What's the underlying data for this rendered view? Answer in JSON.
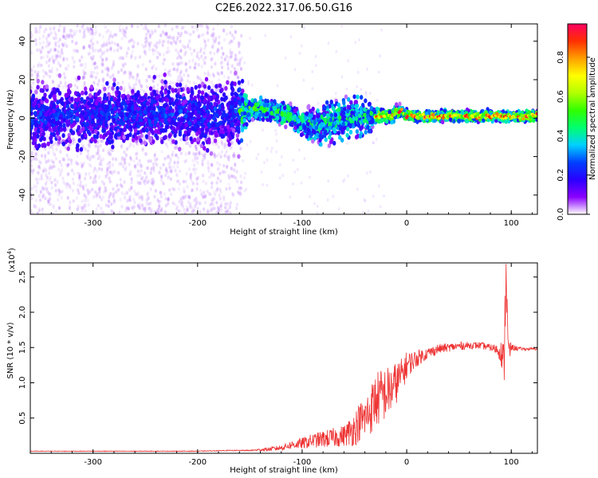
{
  "title": "C2E6.2022.317.06.50.G16",
  "chart_data": [
    {
      "type": "heatmap",
      "xlabel": "Height of straight line (km)",
      "ylabel": "Frequency (Hz)",
      "xlim": [
        -360,
        125
      ],
      "ylim": [
        -50,
        49
      ],
      "xticks": [
        -300,
        -200,
        -100,
        0,
        100
      ],
      "xtick_labels": [
        "-300",
        "-200",
        "-100",
        "0",
        "100"
      ],
      "yticks": [
        -40,
        -20,
        0,
        20,
        40
      ],
      "ytick_labels": [
        "-40",
        "-20",
        "0",
        "20",
        "40"
      ],
      "colorbar": {
        "label": "Normalized spectral amplitude",
        "range": [
          0,
          0.97
        ],
        "ticks": [
          0.0,
          0.2,
          0.4,
          0.6,
          0.8
        ],
        "tick_labels": [
          "0.0",
          "0.2",
          "0.4",
          "0.6",
          "0.8"
        ],
        "colors": [
          "#ffffff",
          "#8a00ff",
          "#2a00ff",
          "#0040ff",
          "#00d0ff",
          "#00ff70",
          "#30ff00",
          "#b0ff00",
          "#ffff00",
          "#ffa000",
          "#ff3000",
          "#ff0060"
        ]
      },
      "center_frequency": [
        {
          "x": -355,
          "y": 1
        },
        {
          "x": -300,
          "y": 1
        },
        {
          "x": -250,
          "y": 2
        },
        {
          "x": -200,
          "y": 2
        },
        {
          "x": -160,
          "y": 3
        },
        {
          "x": -150,
          "y": 5
        },
        {
          "x": -140,
          "y": 5
        },
        {
          "x": -125,
          "y": 3
        },
        {
          "x": -110,
          "y": 1
        },
        {
          "x": -100,
          "y": -2
        },
        {
          "x": -90,
          "y": -4
        },
        {
          "x": -80,
          "y": -3
        },
        {
          "x": -70,
          "y": -1
        },
        {
          "x": -55,
          "y": 1
        },
        {
          "x": -40,
          "y": 1
        },
        {
          "x": -25,
          "y": 1
        },
        {
          "x": -15,
          "y": 1
        },
        {
          "x": -10,
          "y": 3
        },
        {
          "x": -5,
          "y": 4
        },
        {
          "x": 0,
          "y": 1
        },
        {
          "x": 20,
          "y": 1
        },
        {
          "x": 50,
          "y": 1
        },
        {
          "x": 100,
          "y": 1
        },
        {
          "x": 125,
          "y": 1
        }
      ],
      "band_halfwidth": [
        {
          "x": -355,
          "y": 12
        },
        {
          "x": -160,
          "y": 12
        },
        {
          "x": -150,
          "y": 4
        },
        {
          "x": -110,
          "y": 4
        },
        {
          "x": -80,
          "y": 8
        },
        {
          "x": -40,
          "y": 8
        },
        {
          "x": -30,
          "y": 3
        },
        {
          "x": 0,
          "y": 2
        },
        {
          "x": 125,
          "y": 2
        }
      ]
    },
    {
      "type": "line",
      "xlabel": "Height of straight line (km)",
      "ylabel": "SNR (10 * v/v)",
      "y_multiplier": "(x10",
      "y_multiplier_exp": "4",
      "y_multiplier_close": ")",
      "xlim": [
        -360,
        125
      ],
      "ylim": [
        0,
        2.7
      ],
      "xticks": [
        -300,
        -200,
        -100,
        0,
        100
      ],
      "xtick_labels": [
        "-300",
        "-200",
        "-100",
        "0",
        "100"
      ],
      "yticks": [
        0.5,
        1.0,
        1.5,
        2.0,
        2.5
      ],
      "ytick_labels": [
        "0.5",
        "1.0",
        "1.5",
        "2.0",
        "2.5"
      ],
      "color": "#ee3333",
      "series": [
        {
          "x": [
            -360,
            -300,
            -250,
            -200,
            -170,
            -150,
            -130,
            -120,
            -110,
            -100,
            -90,
            -80,
            -70,
            -60,
            -50,
            -45,
            -40,
            -35,
            -30,
            -25,
            -20,
            -15,
            -10,
            -5,
            0,
            5,
            10,
            20,
            30,
            40,
            50,
            60,
            70,
            80,
            85,
            90,
            93,
            95,
            97,
            100,
            110,
            125
          ],
          "y": [
            0.03,
            0.03,
            0.03,
            0.03,
            0.04,
            0.04,
            0.06,
            0.08,
            0.12,
            0.14,
            0.18,
            0.2,
            0.22,
            0.25,
            0.35,
            0.45,
            0.5,
            0.6,
            0.75,
            0.8,
            0.85,
            0.9,
            1.0,
            1.1,
            1.25,
            1.3,
            1.35,
            1.42,
            1.48,
            1.5,
            1.52,
            1.53,
            1.53,
            1.5,
            1.48,
            1.45,
            1.2,
            2.7,
            1.4,
            1.5,
            1.48,
            1.48
          ],
          "noise": [
            0.004,
            0.004,
            0.004,
            0.005,
            0.006,
            0.008,
            0.03,
            0.04,
            0.06,
            0.08,
            0.1,
            0.12,
            0.14,
            0.15,
            0.25,
            0.28,
            0.3,
            0.35,
            0.4,
            0.4,
            0.38,
            0.35,
            0.3,
            0.25,
            0.2,
            0.15,
            0.12,
            0.08,
            0.07,
            0.06,
            0.06,
            0.05,
            0.05,
            0.05,
            0.07,
            0.15,
            0.4,
            0.5,
            0.3,
            0.05,
            0.02,
            0.02
          ]
        }
      ]
    }
  ]
}
